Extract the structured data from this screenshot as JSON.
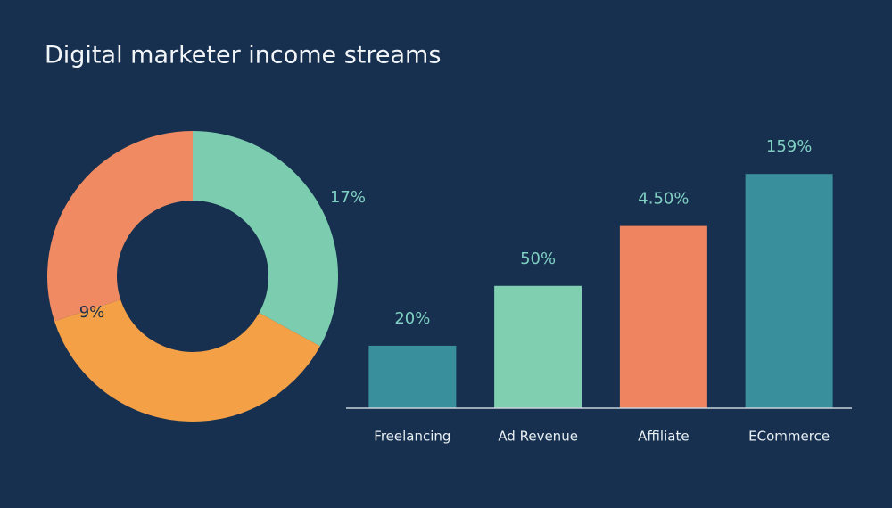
{
  "title": "Digital marketer income streams",
  "chart_data": [
    {
      "type": "pie",
      "donut": true,
      "values": [
        33,
        37,
        30
      ],
      "colors": [
        "#7ccdb0",
        "#f4a047",
        "#ef8a62"
      ],
      "annotations": [
        "17%",
        "9%"
      ]
    },
    {
      "type": "bar",
      "categories": [
        "Freelancing",
        "Ad Revenue",
        "Affiliate",
        "ECommerce"
      ],
      "values": [
        24,
        47,
        70,
        90
      ],
      "colors": [
        "#3a8f9d",
        "#80cfb1",
        "#ef8461",
        "#3a8f9d"
      ],
      "annotations": [
        "20%",
        "50%",
        "4.50%",
        "159%"
      ],
      "ylim": [
        0,
        100
      ]
    }
  ]
}
